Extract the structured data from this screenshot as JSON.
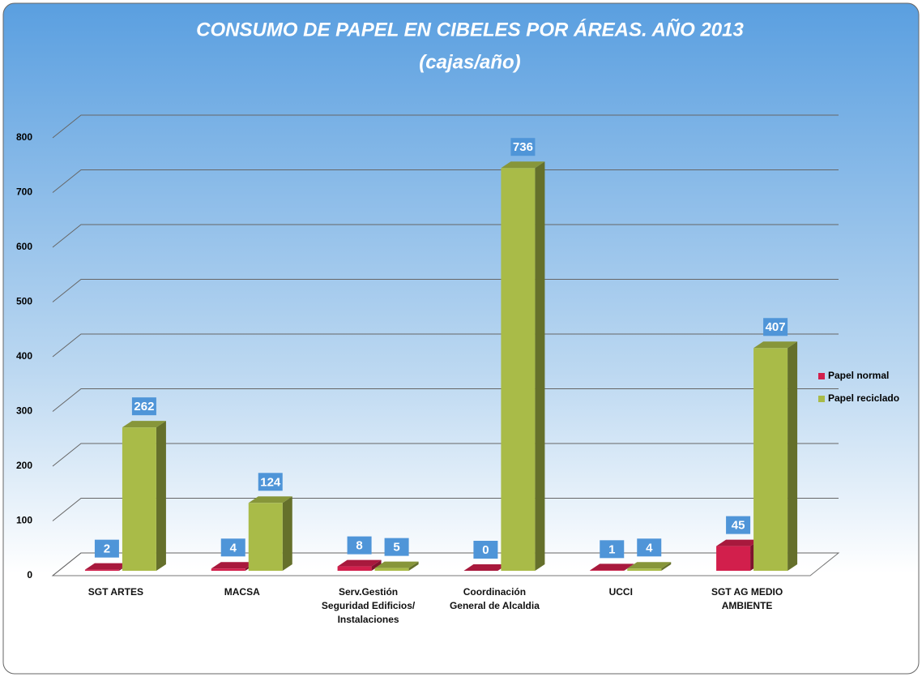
{
  "chart_data": {
    "type": "bar3d",
    "title": "CONSUMO DE PAPEL EN CIBELES POR ÁREAS. AÑO 2013",
    "subtitle": "(cajas/año)",
    "categories": [
      "SGT ARTES",
      "MACSA",
      "Serv.Gestión\nSeguridad Edificios/\nInstalaciones",
      "Coordinación\nGeneral de Alcaldia",
      "UCCI",
      "SGT AG MEDIO\nAMBIENTE"
    ],
    "series": [
      {
        "name": "Papel normal",
        "color": "#d21f4c",
        "values": [
          2,
          4,
          8,
          0,
          1,
          45
        ]
      },
      {
        "name": "Papel reciclado",
        "color": "#a9bb48",
        "values": [
          262,
          124,
          5,
          736,
          4,
          407
        ]
      }
    ],
    "ylim": [
      0,
      800
    ],
    "yticks": [
      0,
      100,
      200,
      300,
      400,
      500,
      600,
      700,
      800
    ],
    "grid": true,
    "legend": "right"
  }
}
